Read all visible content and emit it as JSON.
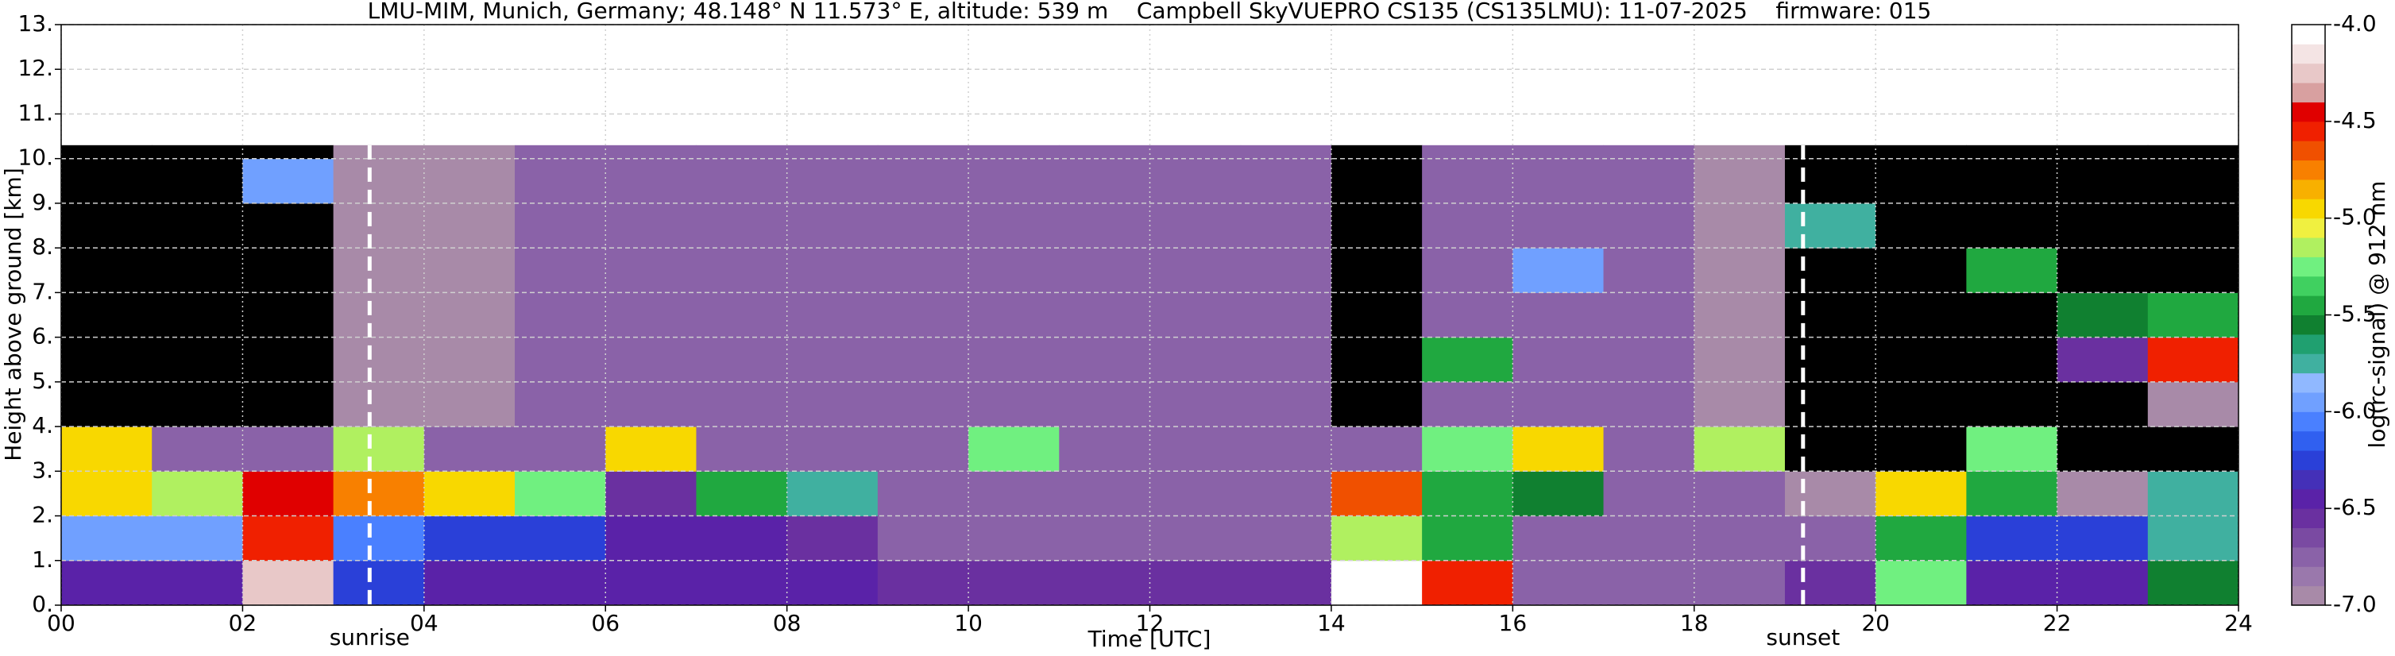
{
  "chart_data": {
    "type": "heatmap",
    "title": "LMU-MIM, Munich, Germany; 48.148° N 11.573° E, altitude: 539 m    Campbell SkyVUEPRO CS135 (CS135LMU): 11-07-2025    firmware: 015",
    "x_label": "Time [UTC]",
    "y_label": "Height above ground [km]",
    "colorbar_label": "log(rc-signal) @ 912 nm",
    "xlim": [
      0,
      24
    ],
    "ylim": [
      0,
      13
    ],
    "xticks": [
      {
        "value": 0,
        "label": "00"
      },
      {
        "value": 2,
        "label": "02"
      },
      {
        "value": 4,
        "label": "04"
      },
      {
        "value": 6,
        "label": "06"
      },
      {
        "value": 8,
        "label": "08"
      },
      {
        "value": 10,
        "label": "10"
      },
      {
        "value": 12,
        "label": "12"
      },
      {
        "value": 14,
        "label": "14"
      },
      {
        "value": 16,
        "label": "16"
      },
      {
        "value": 18,
        "label": "18"
      },
      {
        "value": 20,
        "label": "20"
      },
      {
        "value": 22,
        "label": "22"
      },
      {
        "value": 24,
        "label": "24"
      }
    ],
    "yticks": [
      {
        "value": 0,
        "label": "0."
      },
      {
        "value": 1,
        "label": "1."
      },
      {
        "value": 2,
        "label": "2."
      },
      {
        "value": 3,
        "label": "3."
      },
      {
        "value": 4,
        "label": "4."
      },
      {
        "value": 5,
        "label": "5."
      },
      {
        "value": 6,
        "label": "6."
      },
      {
        "value": 7,
        "label": "7."
      },
      {
        "value": 8,
        "label": "8."
      },
      {
        "value": 9,
        "label": "9."
      },
      {
        "value": 10,
        "label": "10."
      },
      {
        "value": 11,
        "label": "11."
      },
      {
        "value": 12,
        "label": "12."
      },
      {
        "value": 13,
        "label": "13."
      }
    ],
    "grid": true,
    "clim": [
      -7,
      -4
    ],
    "cticks": [
      {
        "value": -4,
        "label": "-4.0"
      },
      -4.5,
      {
        "value": -5,
        "label": "-5.0"
      },
      -5.5,
      {
        "value": -6,
        "label": "-6.0"
      },
      -6.5,
      {
        "value": -7,
        "label": "-7.0"
      }
    ],
    "colors": [
      "#a88aa8",
      "#9a78ac",
      "#8a62a8",
      "#7a4aa2",
      "#6a30a0",
      "#5a22a8",
      "#4430b8",
      "#2a40d8",
      "#3060f0",
      "#4a80ff",
      "#70a0ff",
      "#90b8ff",
      "#40b0a0",
      "#20a070",
      "#108030",
      "#20a840",
      "#40d060",
      "#70f080",
      "#b0f060",
      "#f0f040",
      "#f8d800",
      "#f8b000",
      "#f88000",
      "#f05000",
      "#f02000",
      "#e00000",
      "#d8a0a0",
      "#e8c8c8",
      "#f4e4e4",
      "#ffffff"
    ],
    "under_color": "#000000",
    "x_edges": [
      0,
      1,
      2,
      3,
      4,
      5,
      6,
      7,
      8,
      9,
      10,
      11,
      12,
      13,
      14,
      15,
      16,
      17,
      18,
      19,
      20,
      21,
      22,
      23,
      24
    ],
    "y_edges": [
      0,
      1,
      2,
      3,
      4,
      5,
      6,
      7,
      8,
      9,
      10,
      10.3
    ],
    "z": [
      [
        -6.4,
        -6.4,
        -4.3,
        -6.3,
        -6.4,
        -6.5,
        -6.5,
        -6.5,
        -6.5,
        -6.6,
        -6.6,
        -6.6,
        -6.6,
        -6.6,
        -4.0,
        -4.6,
        -6.7,
        -6.7,
        -6.7,
        -6.6,
        -5.3,
        -6.4,
        -6.4,
        -5.6
      ],
      [
        -6.0,
        -6.0,
        -4.6,
        -6.1,
        -6.2,
        -6.3,
        -6.4,
        -6.5,
        -6.6,
        -6.7,
        -6.8,
        -6.8,
        -6.8,
        -6.8,
        -5.2,
        -5.5,
        -6.8,
        -6.8,
        -6.8,
        -6.7,
        -5.4,
        -6.2,
        -6.3,
        -5.7
      ],
      [
        -5.0,
        -5.2,
        -4.5,
        -4.8,
        -5.0,
        -5.3,
        -6.6,
        -5.5,
        -5.8,
        -6.8,
        -6.8,
        -6.8,
        -6.8,
        -6.8,
        -4.7,
        -5.4,
        -5.6,
        -6.8,
        -6.7,
        -6.9,
        -5.0,
        -5.5,
        -6.9,
        -5.8
      ],
      [
        -4.9,
        -6.8,
        -6.8,
        -5.2,
        -6.8,
        -6.8,
        -5.0,
        -6.8,
        -6.8,
        -6.8,
        -5.3,
        -6.8,
        -6.8,
        -6.8,
        -6.8,
        -5.3,
        -5.0,
        -6.8,
        -5.2,
        -7.2,
        -7.2,
        -5.3,
        -7.2,
        -7.2
      ],
      [
        -7.2,
        -7.2,
        -7.2,
        -7.0,
        -6.9,
        -6.8,
        -6.8,
        -6.8,
        -6.8,
        -6.8,
        -6.8,
        -6.8,
        -6.8,
        -6.8,
        -7.1,
        -6.7,
        -6.8,
        -6.8,
        -6.9,
        -7.2,
        -7.2,
        -7.2,
        -7.2,
        -6.9
      ],
      [
        -7.2,
        -7.2,
        -7.2,
        -7.0,
        -6.9,
        -6.8,
        -6.8,
        -6.8,
        -6.8,
        -6.8,
        -6.8,
        -6.8,
        -6.8,
        -6.8,
        -7.1,
        -5.5,
        -6.8,
        -6.8,
        -6.9,
        -7.2,
        -7.2,
        -7.2,
        -6.6,
        -4.6
      ],
      [
        -7.2,
        -7.2,
        -7.2,
        -7.0,
        -6.9,
        -6.8,
        -6.8,
        -6.8,
        -6.8,
        -6.8,
        -6.8,
        -6.8,
        -6.8,
        -6.8,
        -7.1,
        -6.8,
        -6.8,
        -6.8,
        -6.9,
        -7.2,
        -7.2,
        -7.2,
        -5.6,
        -5.4
      ],
      [
        -7.2,
        -7.2,
        -7.2,
        -7.0,
        -6.9,
        -6.8,
        -6.8,
        -6.8,
        -6.8,
        -6.8,
        -6.8,
        -6.8,
        -6.8,
        -6.8,
        -7.1,
        -6.8,
        -6.0,
        -6.8,
        -6.9,
        -7.2,
        -7.2,
        -5.5,
        -7.2,
        -7.2
      ],
      [
        -7.2,
        -7.2,
        -7.2,
        -7.0,
        -6.9,
        -6.8,
        -6.8,
        -6.8,
        -6.8,
        -6.8,
        -6.8,
        -6.8,
        -6.8,
        -6.8,
        -7.1,
        -6.8,
        -6.8,
        -6.8,
        -6.9,
        -5.8,
        -7.2,
        -7.2,
        -7.2,
        -7.2
      ],
      [
        -7.2,
        -7.2,
        -6.0,
        -7.0,
        -6.9,
        -6.8,
        -6.8,
        -6.8,
        -6.8,
        -6.8,
        -6.8,
        -6.8,
        -6.8,
        -6.8,
        -7.1,
        -6.8,
        -6.8,
        -6.8,
        -6.9,
        -7.2,
        -7.2,
        -7.2,
        -7.2,
        -7.2
      ],
      [
        -7.2,
        -7.2,
        -7.2,
        -7.0,
        -6.9,
        -6.8,
        -6.8,
        -6.8,
        -6.8,
        -6.8,
        -6.8,
        -6.8,
        -6.8,
        -6.8,
        -7.1,
        -6.8,
        -6.8,
        -6.8,
        -6.9,
        -7.2,
        -7.2,
        -7.2,
        -7.2,
        -7.2
      ]
    ],
    "annotations": [
      {
        "text": "sunrise",
        "x": 3.4
      },
      {
        "text": "sunset",
        "x": 19.2
      }
    ]
  }
}
